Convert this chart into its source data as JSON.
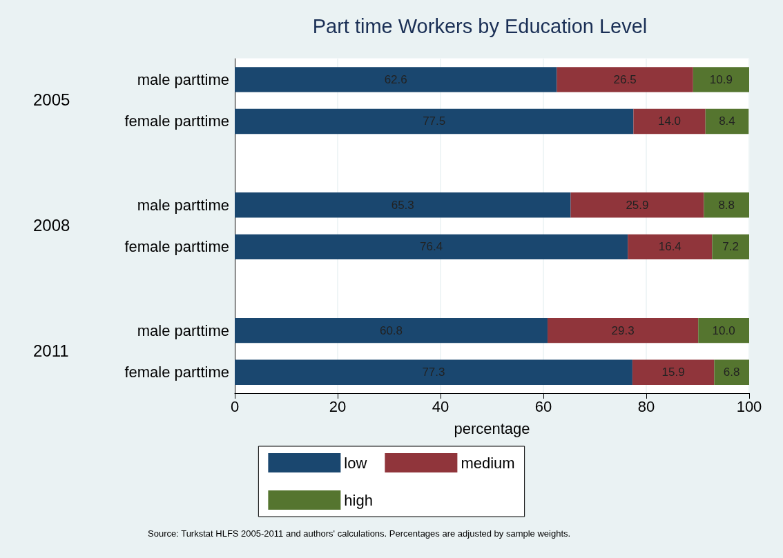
{
  "chart_data": {
    "type": "bar",
    "orientation": "horizontal",
    "stacked": true,
    "title": "Part time Workers by Education Level",
    "xlabel": "percentage",
    "categories": [
      "male parttime",
      "female parttime",
      null,
      "male parttime",
      "female parttime",
      null,
      "male parttime",
      "female parttime"
    ],
    "series": [
      {
        "name": "low",
        "color": "#1a476f",
        "values": [
          62.6,
          77.5,
          null,
          65.3,
          76.4,
          null,
          60.8,
          77.3
        ],
        "value_labels": [
          "62.6",
          "77.5",
          null,
          "65.3",
          "76.4",
          null,
          "60.8",
          "77.3"
        ]
      },
      {
        "name": "medium",
        "color": "#90353b",
        "values": [
          26.5,
          14.0,
          null,
          25.9,
          16.4,
          null,
          29.3,
          15.9
        ],
        "value_labels": [
          "26.5",
          "14.0",
          null,
          "25.9",
          "16.4",
          null,
          "29.3",
          "15.9"
        ]
      },
      {
        "name": "high",
        "color": "#55752f",
        "values": [
          10.9,
          8.4,
          null,
          8.8,
          7.2,
          null,
          10.0,
          6.8
        ],
        "value_labels": [
          "10.9",
          "8.4",
          null,
          "8.8",
          "7.2",
          null,
          "10.0",
          "6.8"
        ]
      }
    ],
    "xlim": [
      0,
      100
    ],
    "xticks": [
      0,
      20,
      40,
      60,
      80,
      100
    ],
    "grid": "x",
    "legend": "bottom",
    "annotations": [
      "2005",
      "2008",
      "2011",
      "Source: Turkstat HLFS 2005-2011 and authors' calculations. Percentages are adjusted by sample weights."
    ]
  }
}
